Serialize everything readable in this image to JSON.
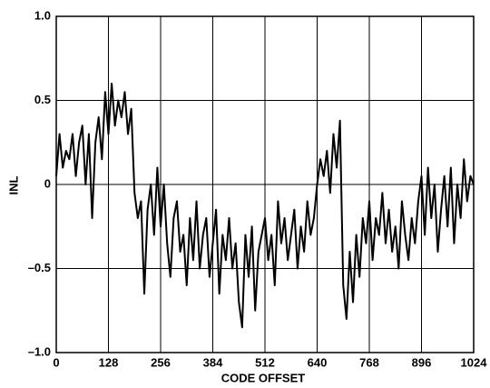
{
  "chart_data": {
    "type": "line",
    "x_label": "CODE OFFSET",
    "y_label": "INL",
    "x": [
      0,
      8,
      16,
      24,
      32,
      40,
      48,
      56,
      64,
      72,
      80,
      88,
      96,
      104,
      112,
      120,
      128,
      136,
      144,
      152,
      160,
      168,
      176,
      184,
      192,
      200,
      208,
      216,
      224,
      232,
      240,
      248,
      256,
      264,
      272,
      280,
      288,
      296,
      304,
      312,
      320,
      328,
      336,
      344,
      352,
      360,
      368,
      376,
      384,
      392,
      400,
      408,
      416,
      424,
      432,
      440,
      448,
      456,
      464,
      472,
      480,
      488,
      496,
      504,
      512,
      520,
      528,
      536,
      544,
      552,
      560,
      568,
      576,
      584,
      592,
      600,
      608,
      616,
      624,
      632,
      640,
      648,
      656,
      664,
      672,
      680,
      688,
      696,
      704,
      712,
      720,
      728,
      736,
      744,
      752,
      760,
      768,
      776,
      784,
      792,
      800,
      808,
      816,
      824,
      832,
      840,
      848,
      856,
      864,
      872,
      880,
      888,
      896,
      904,
      912,
      920,
      928,
      936,
      944,
      952,
      960,
      968,
      976,
      984,
      992,
      1000,
      1008,
      1016,
      1024
    ],
    "series": [
      {
        "name": "INL",
        "color": "#000000",
        "values": [
          0.05,
          0.3,
          0.1,
          0.2,
          0.15,
          0.3,
          0.05,
          0.25,
          0.35,
          0.0,
          0.3,
          -0.2,
          0.25,
          0.4,
          0.15,
          0.55,
          0.3,
          0.6,
          0.35,
          0.5,
          0.4,
          0.55,
          0.3,
          0.45,
          -0.05,
          -0.2,
          -0.1,
          -0.65,
          -0.15,
          0.0,
          -0.3,
          0.1,
          -0.25,
          0.0,
          -0.35,
          -0.55,
          -0.2,
          -0.1,
          -0.4,
          -0.3,
          -0.6,
          -0.2,
          -0.45,
          -0.1,
          -0.5,
          -0.3,
          -0.2,
          -0.55,
          -0.35,
          -0.15,
          -0.65,
          -0.3,
          -0.45,
          -0.2,
          -0.5,
          -0.35,
          -0.7,
          -0.85,
          -0.3,
          -0.55,
          -0.25,
          -0.75,
          -0.4,
          -0.3,
          -0.2,
          -0.45,
          -0.3,
          -0.6,
          -0.1,
          -0.35,
          -0.2,
          -0.45,
          -0.3,
          -0.15,
          -0.5,
          -0.25,
          -0.4,
          -0.1,
          -0.3,
          -0.2,
          0.0,
          0.15,
          0.05,
          0.2,
          -0.05,
          0.3,
          0.1,
          0.38,
          -0.6,
          -0.8,
          -0.4,
          -0.7,
          -0.3,
          -0.55,
          -0.2,
          -0.35,
          -0.1,
          -0.45,
          -0.2,
          -0.3,
          -0.05,
          -0.35,
          -0.15,
          -0.4,
          -0.25,
          -0.5,
          -0.1,
          -0.3,
          -0.45,
          -0.2,
          -0.35,
          -0.1,
          0.05,
          -0.3,
          0.1,
          -0.2,
          0.0,
          -0.4,
          -0.15,
          0.05,
          -0.25,
          0.1,
          -0.35,
          0.0,
          -0.2,
          0.15,
          -0.1,
          0.05,
          0.0
        ]
      }
    ],
    "xlim": [
      0,
      1024
    ],
    "xticks": [
      0,
      128,
      256,
      384,
      512,
      640,
      768,
      896,
      1024
    ],
    "ylim": [
      -1,
      1
    ],
    "yticks": [
      {
        "value": -1,
        "label": "–1.0"
      },
      {
        "value": -0.5,
        "label": "–0.5"
      },
      0,
      0.5,
      {
        "value": 1,
        "label": "1.0"
      }
    ],
    "grid": true
  }
}
